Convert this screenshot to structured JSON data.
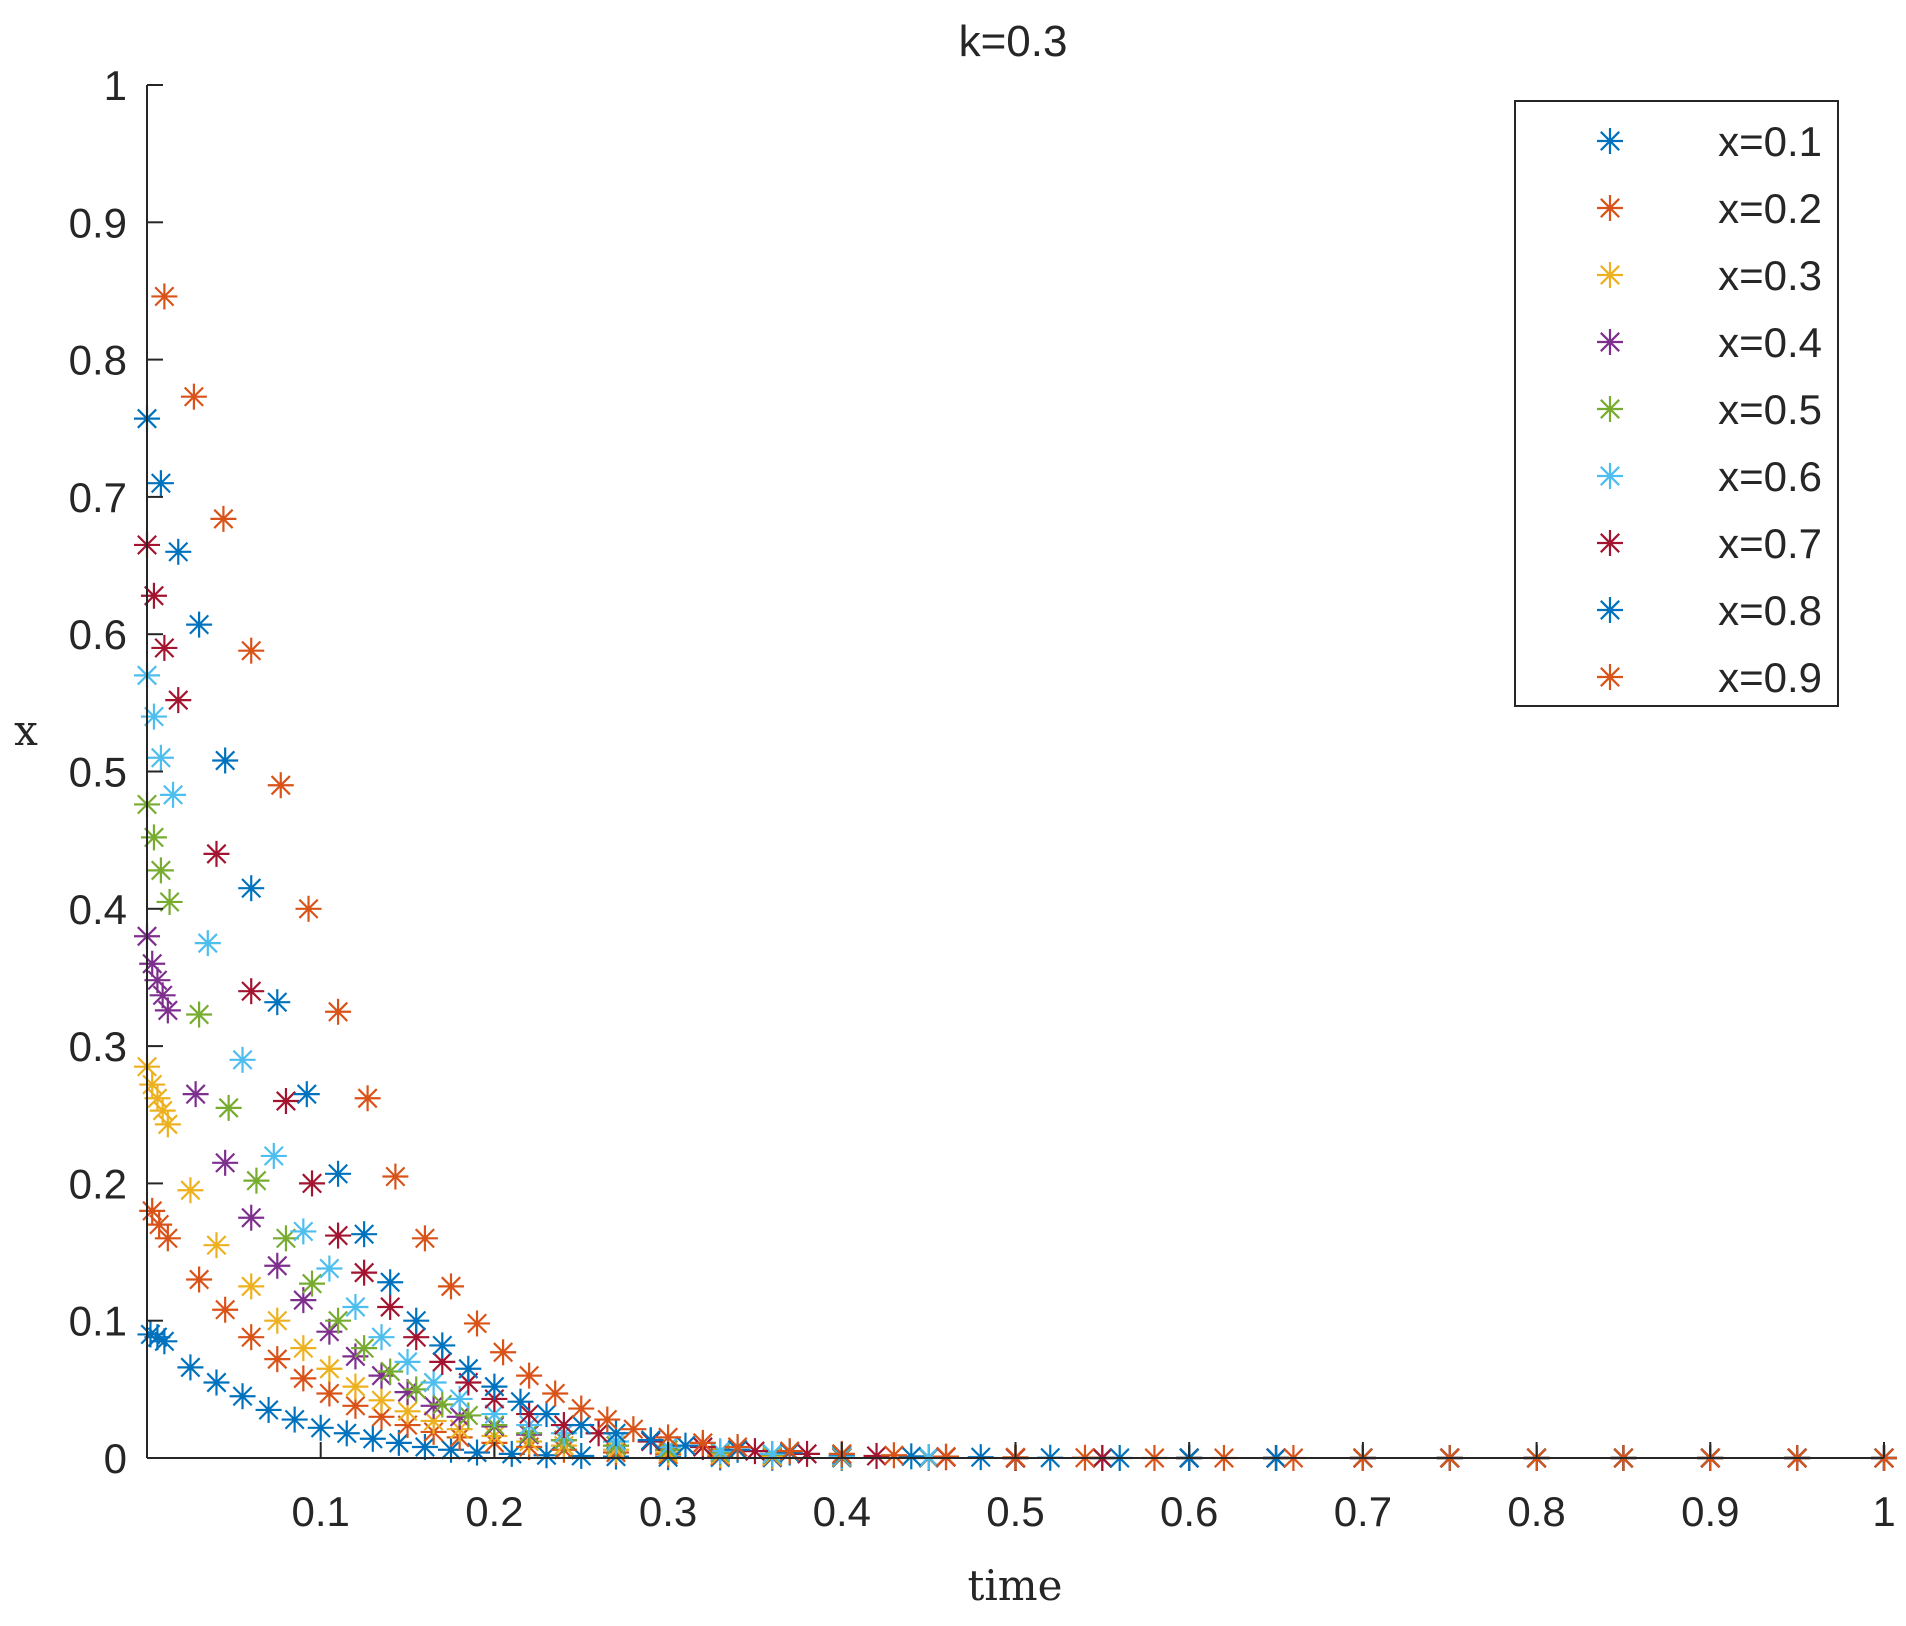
{
  "chart_data": {
    "type": "scatter",
    "title": "k=0.3",
    "xlabel": "time",
    "ylabel": "x",
    "xlim": [
      0,
      1
    ],
    "ylim": [
      0,
      1
    ],
    "grid": false,
    "legend_position": "top-right",
    "marker": "asterisk",
    "x_ticks": [
      "0.1",
      "0.2",
      "0.3",
      "0.4",
      "0.5",
      "0.6",
      "0.7",
      "0.8",
      "0.9",
      "1"
    ],
    "x_tick_values": [
      0.1,
      0.2,
      0.3,
      0.4,
      0.5,
      0.6,
      0.7,
      0.8,
      0.9,
      1.0
    ],
    "y_ticks": [
      "0",
      "0.1",
      "0.2",
      "0.3",
      "0.4",
      "0.5",
      "0.6",
      "0.7",
      "0.8",
      "0.9",
      "1"
    ],
    "y_tick_values": [
      0,
      0.1,
      0.2,
      0.3,
      0.4,
      0.5,
      0.6,
      0.7,
      0.8,
      0.9,
      1.0
    ],
    "series": [
      {
        "name": "x=0.1",
        "color": "#0072BD",
        "x": [
          0.002,
          0.006,
          0.01,
          0.025,
          0.04,
          0.055,
          0.07,
          0.085,
          0.1,
          0.115,
          0.13,
          0.145,
          0.16,
          0.175,
          0.19,
          0.21,
          0.23,
          0.25,
          0.27,
          0.3,
          0.33,
          0.36,
          0.4,
          0.45,
          0.5,
          0.55,
          0.6,
          0.65,
          0.7,
          0.75,
          0.8,
          0.85,
          0.9,
          0.95,
          1.0
        ],
        "y": [
          0.09,
          0.088,
          0.085,
          0.066,
          0.055,
          0.045,
          0.035,
          0.028,
          0.022,
          0.018,
          0.014,
          0.011,
          0.008,
          0.006,
          0.004,
          0.003,
          0.002,
          0.0015,
          0.001,
          0.0006,
          0.0004,
          0.0002,
          0.0001,
          0.0,
          0.0,
          0.0,
          0.0,
          0.0,
          0.0,
          0.0,
          0.0,
          0.0,
          0.0,
          0.0,
          0.0
        ]
      },
      {
        "name": "x=0.2",
        "color": "#D95319",
        "x": [
          0.003,
          0.007,
          0.012,
          0.03,
          0.045,
          0.06,
          0.075,
          0.09,
          0.105,
          0.12,
          0.135,
          0.15,
          0.165,
          0.18,
          0.2,
          0.22,
          0.24,
          0.27,
          0.3,
          0.33,
          0.36,
          0.4,
          0.45,
          0.5,
          0.55,
          0.6,
          0.65,
          0.7,
          0.75,
          0.8,
          0.85,
          0.9,
          0.95,
          1.0
        ],
        "y": [
          0.18,
          0.17,
          0.16,
          0.13,
          0.108,
          0.088,
          0.072,
          0.058,
          0.047,
          0.038,
          0.03,
          0.024,
          0.019,
          0.015,
          0.011,
          0.008,
          0.006,
          0.004,
          0.0025,
          0.0015,
          0.001,
          0.0005,
          0.0002,
          0.0,
          0.0,
          0.0,
          0.0,
          0.0,
          0.0,
          0.0,
          0.0,
          0.0,
          0.0,
          0.0
        ]
      },
      {
        "name": "x=0.3",
        "color": "#EDB120",
        "x": [
          0.0,
          0.003,
          0.006,
          0.009,
          0.012,
          0.025,
          0.04,
          0.06,
          0.075,
          0.09,
          0.105,
          0.12,
          0.135,
          0.15,
          0.165,
          0.18,
          0.2,
          0.22,
          0.24,
          0.27,
          0.3,
          0.33,
          0.36,
          0.4,
          0.45,
          0.5,
          0.55,
          0.6,
          0.65,
          0.7,
          0.75,
          0.8,
          0.85,
          0.9,
          0.95,
          1.0
        ],
        "y": [
          0.285,
          0.272,
          0.262,
          0.253,
          0.243,
          0.195,
          0.155,
          0.125,
          0.1,
          0.08,
          0.065,
          0.052,
          0.042,
          0.034,
          0.027,
          0.021,
          0.016,
          0.012,
          0.009,
          0.006,
          0.004,
          0.0025,
          0.0015,
          0.0008,
          0.0003,
          0.0,
          0.0,
          0.0,
          0.0,
          0.0,
          0.0,
          0.0,
          0.0,
          0.0,
          0.0,
          0.0
        ]
      },
      {
        "name": "x=0.4",
        "color": "#7E2F8E",
        "x": [
          0.0,
          0.003,
          0.006,
          0.009,
          0.012,
          0.028,
          0.045,
          0.06,
          0.075,
          0.09,
          0.105,
          0.12,
          0.135,
          0.15,
          0.165,
          0.18,
          0.2,
          0.22,
          0.24,
          0.27,
          0.3,
          0.33,
          0.36,
          0.4,
          0.45,
          0.5,
          0.55,
          0.6,
          0.65,
          0.7,
          0.75,
          0.8,
          0.85,
          0.9,
          0.95,
          1.0
        ],
        "y": [
          0.38,
          0.36,
          0.348,
          0.337,
          0.326,
          0.265,
          0.215,
          0.175,
          0.14,
          0.115,
          0.092,
          0.074,
          0.06,
          0.048,
          0.038,
          0.03,
          0.023,
          0.017,
          0.013,
          0.009,
          0.006,
          0.004,
          0.0025,
          0.0012,
          0.0005,
          0.0,
          0.0,
          0.0,
          0.0,
          0.0,
          0.0,
          0.0,
          0.0,
          0.0,
          0.0,
          0.0
        ]
      },
      {
        "name": "x=0.5",
        "color": "#77AC30",
        "x": [
          0.0,
          0.004,
          0.008,
          0.013,
          0.03,
          0.047,
          0.063,
          0.08,
          0.095,
          0.11,
          0.125,
          0.14,
          0.155,
          0.17,
          0.185,
          0.2,
          0.22,
          0.24,
          0.27,
          0.3,
          0.33,
          0.36,
          0.4,
          0.45,
          0.5,
          0.55,
          0.6,
          0.65,
          0.7,
          0.75,
          0.8,
          0.85,
          0.9,
          0.95,
          1.0
        ],
        "y": [
          0.476,
          0.452,
          0.428,
          0.405,
          0.323,
          0.255,
          0.202,
          0.16,
          0.127,
          0.1,
          0.08,
          0.063,
          0.05,
          0.039,
          0.031,
          0.024,
          0.018,
          0.013,
          0.009,
          0.006,
          0.004,
          0.0025,
          0.0012,
          0.0005,
          0.0,
          0.0,
          0.0,
          0.0,
          0.0,
          0.0,
          0.0,
          0.0,
          0.0,
          0.0,
          0.0
        ]
      },
      {
        "name": "x=0.6",
        "color": "#4DBEEE",
        "x": [
          0.0,
          0.004,
          0.008,
          0.015,
          0.035,
          0.055,
          0.073,
          0.09,
          0.105,
          0.12,
          0.135,
          0.15,
          0.165,
          0.18,
          0.2,
          0.22,
          0.24,
          0.27,
          0.3,
          0.33,
          0.36,
          0.4,
          0.45,
          0.5,
          0.55,
          0.6,
          0.65,
          0.7,
          0.75,
          0.8,
          0.85,
          0.9,
          0.95,
          1.0
        ],
        "y": [
          0.57,
          0.54,
          0.51,
          0.483,
          0.375,
          0.29,
          0.22,
          0.165,
          0.138,
          0.11,
          0.088,
          0.07,
          0.055,
          0.043,
          0.032,
          0.024,
          0.018,
          0.012,
          0.008,
          0.005,
          0.003,
          0.0015,
          0.0006,
          0.0,
          0.0,
          0.0,
          0.0,
          0.0,
          0.0,
          0.0,
          0.0,
          0.0,
          0.0,
          0.0
        ]
      },
      {
        "name": "x=0.7",
        "color": "#A2142F",
        "x": [
          0.0,
          0.004,
          0.01,
          0.018,
          0.04,
          0.06,
          0.08,
          0.095,
          0.11,
          0.125,
          0.14,
          0.155,
          0.17,
          0.185,
          0.2,
          0.22,
          0.24,
          0.26,
          0.29,
          0.32,
          0.35,
          0.38,
          0.42,
          0.46,
          0.5,
          0.55,
          0.6,
          0.65,
          0.7,
          0.75,
          0.8,
          0.85,
          0.9,
          0.95,
          1.0
        ],
        "y": [
          0.665,
          0.628,
          0.59,
          0.552,
          0.44,
          0.34,
          0.26,
          0.2,
          0.162,
          0.135,
          0.11,
          0.088,
          0.07,
          0.055,
          0.043,
          0.032,
          0.024,
          0.018,
          0.012,
          0.008,
          0.005,
          0.003,
          0.0015,
          0.0006,
          0.0,
          0.0,
          0.0,
          0.0,
          0.0,
          0.0,
          0.0,
          0.0,
          0.0,
          0.0,
          0.0
        ]
      },
      {
        "name": "x=0.8",
        "color": "#0072BD",
        "x": [
          0.0,
          0.008,
          0.018,
          0.03,
          0.045,
          0.06,
          0.075,
          0.092,
          0.11,
          0.125,
          0.14,
          0.155,
          0.17,
          0.185,
          0.2,
          0.215,
          0.23,
          0.25,
          0.27,
          0.29,
          0.31,
          0.34,
          0.37,
          0.4,
          0.44,
          0.48,
          0.52,
          0.56,
          0.6,
          0.65,
          0.7,
          0.75,
          0.8,
          0.85,
          0.9,
          0.95,
          1.0
        ],
        "y": [
          0.757,
          0.71,
          0.66,
          0.607,
          0.508,
          0.415,
          0.332,
          0.265,
          0.207,
          0.163,
          0.128,
          0.1,
          0.082,
          0.065,
          0.052,
          0.041,
          0.032,
          0.024,
          0.018,
          0.013,
          0.009,
          0.006,
          0.004,
          0.0025,
          0.0012,
          0.0006,
          0.0002,
          0.0,
          0.0,
          0.0,
          0.0,
          0.0,
          0.0,
          0.0,
          0.0,
          0.0,
          0.0
        ]
      },
      {
        "name": "x=0.9",
        "color": "#D95319",
        "x": [
          0.01,
          0.027,
          0.044,
          0.06,
          0.077,
          0.093,
          0.11,
          0.127,
          0.143,
          0.16,
          0.175,
          0.19,
          0.205,
          0.22,
          0.235,
          0.25,
          0.265,
          0.28,
          0.3,
          0.32,
          0.34,
          0.37,
          0.4,
          0.43,
          0.46,
          0.5,
          0.54,
          0.58,
          0.62,
          0.66,
          0.7,
          0.75,
          0.8,
          0.85,
          0.9,
          0.95,
          1.0
        ],
        "y": [
          0.846,
          0.773,
          0.684,
          0.588,
          0.49,
          0.4,
          0.325,
          0.262,
          0.205,
          0.16,
          0.125,
          0.098,
          0.077,
          0.06,
          0.047,
          0.036,
          0.028,
          0.021,
          0.015,
          0.011,
          0.008,
          0.005,
          0.003,
          0.002,
          0.001,
          0.0005,
          0.0002,
          0.0,
          0.0,
          0.0,
          0.0,
          0.0,
          0.0,
          0.0,
          0.0,
          0.0,
          0.0
        ]
      }
    ]
  }
}
